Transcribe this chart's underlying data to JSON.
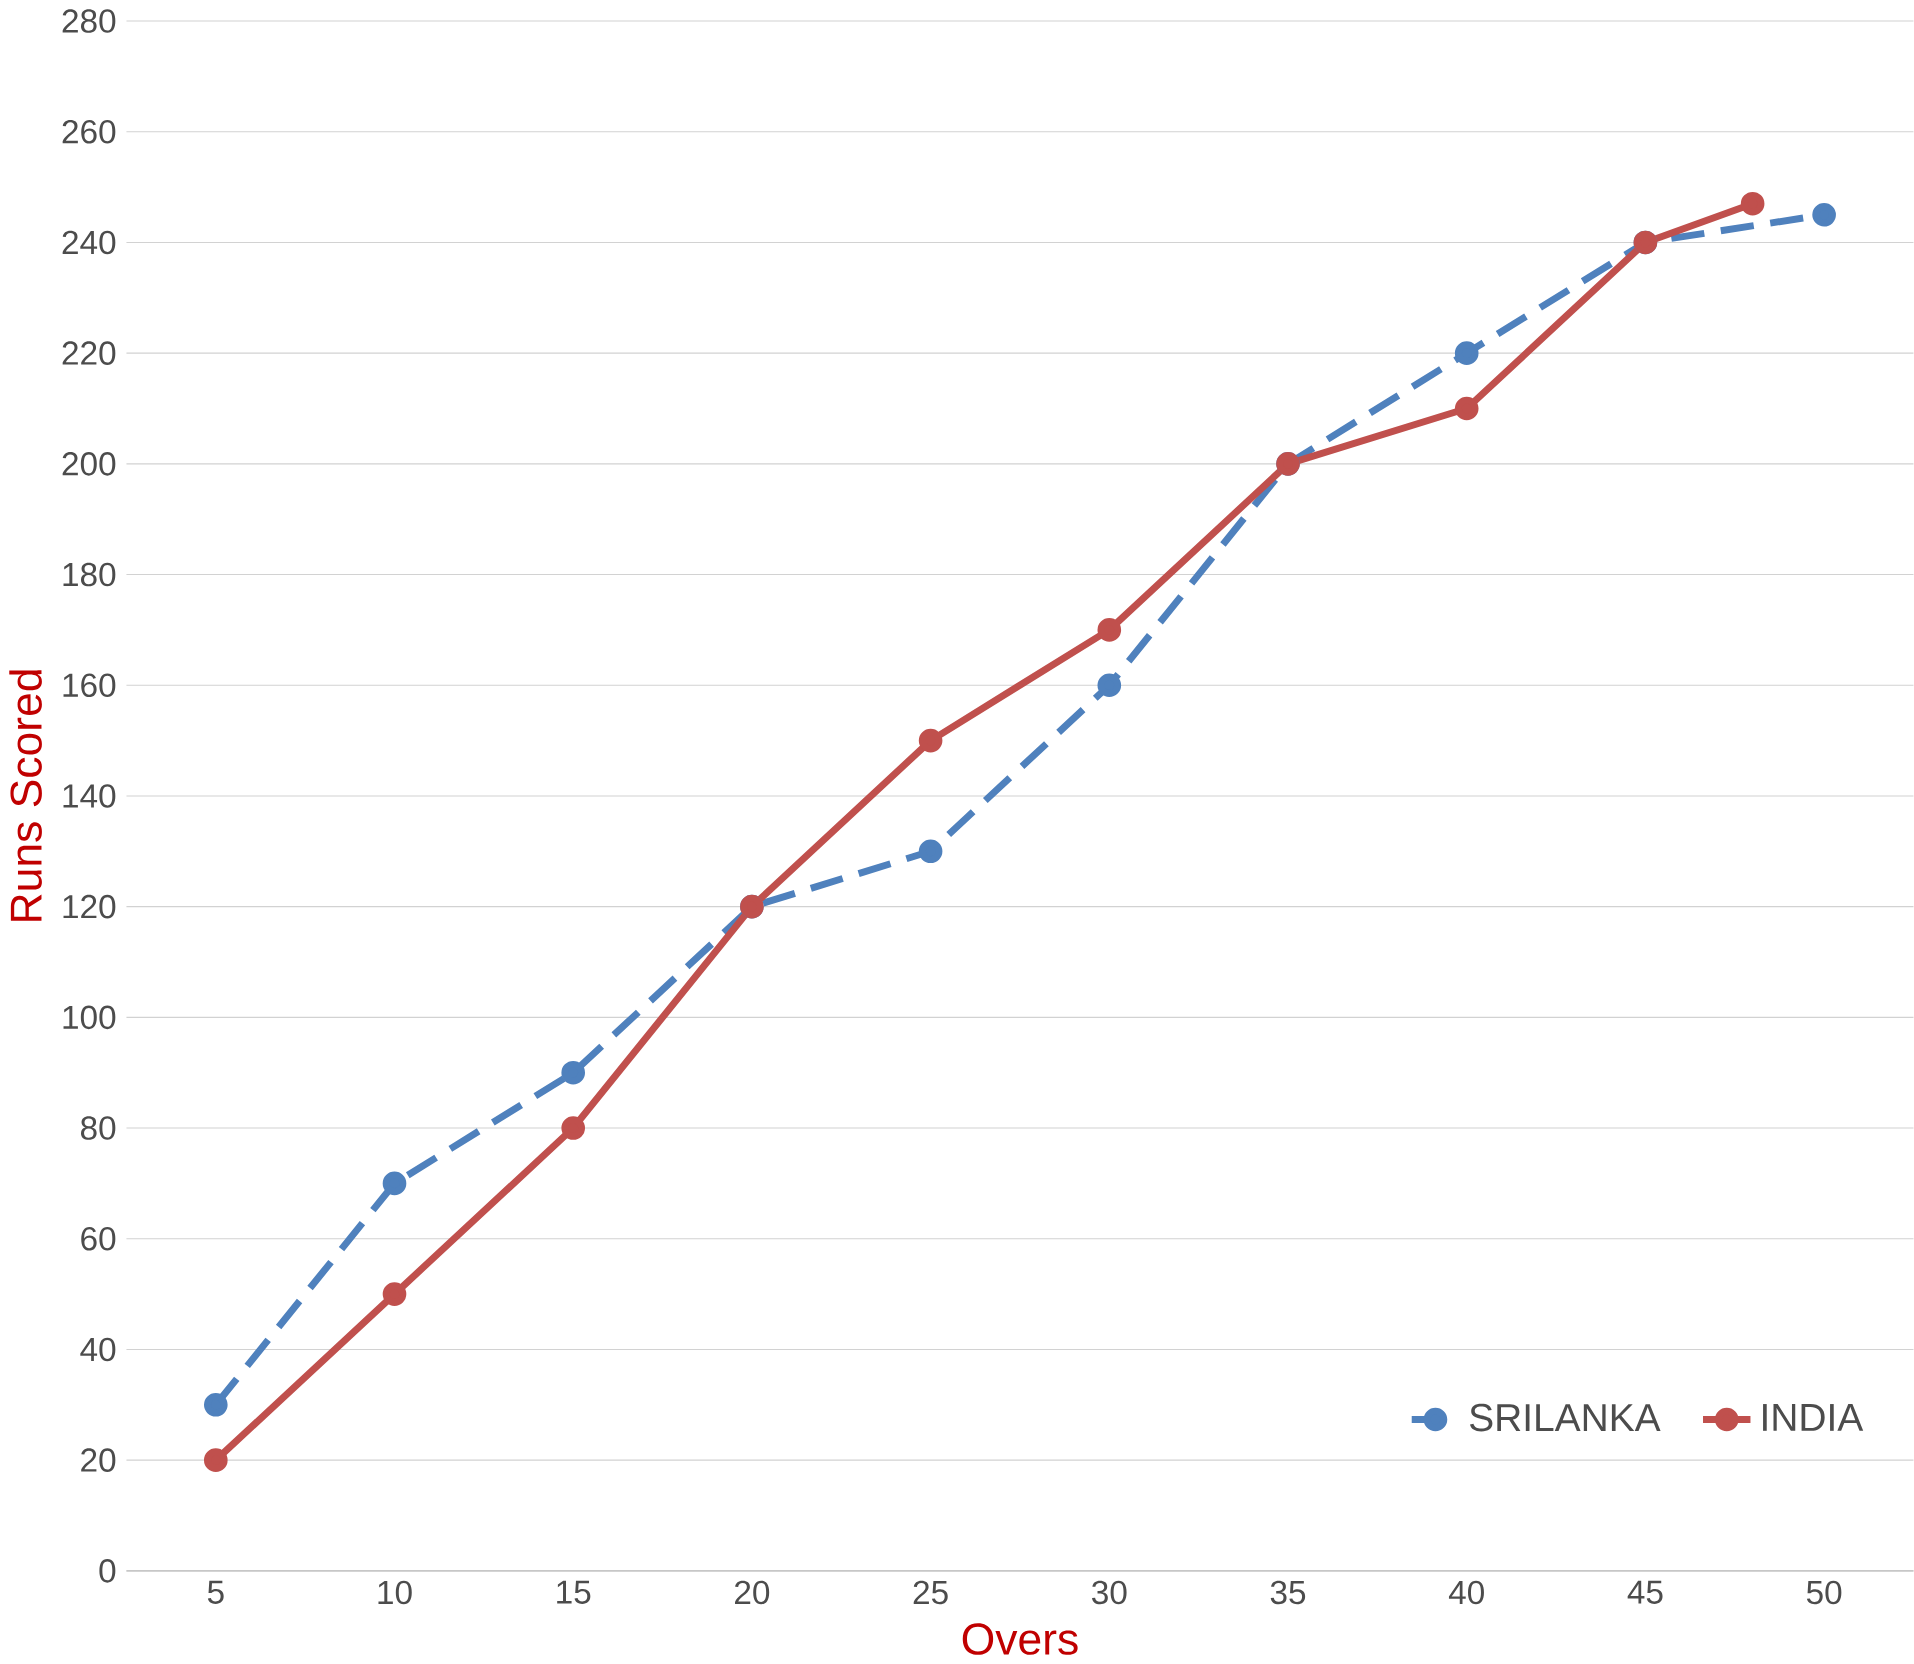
{
  "chart_data": {
    "type": "line",
    "xlabel": "Overs",
    "ylabel": "Runs Scored",
    "xlim": [
      2.5,
      52.5
    ],
    "xticks": [
      5,
      10,
      15,
      20,
      25,
      30,
      35,
      40,
      45,
      50
    ],
    "ylim": [
      0,
      280
    ],
    "yticks": [
      0,
      20,
      40,
      60,
      80,
      100,
      120,
      140,
      160,
      180,
      200,
      220,
      240,
      260,
      280
    ],
    "grid": "y",
    "legend": "bottom right",
    "marker": "circle",
    "series": [
      {
        "name": "SRILANKA",
        "color": "#4f81bd",
        "line_style": "dashed",
        "x": [
          5,
          10,
          15,
          20,
          25,
          30,
          35,
          40,
          45,
          50
        ],
        "values": [
          30,
          70,
          90,
          120,
          130,
          160,
          200,
          220,
          240,
          245
        ]
      },
      {
        "name": "INDIA",
        "color": "#c0504d",
        "line_style": "solid",
        "x": [
          5,
          10,
          15,
          20,
          25,
          30,
          35,
          40,
          45,
          48
        ],
        "values": [
          20,
          50,
          80,
          120,
          150,
          170,
          200,
          210,
          240,
          247
        ]
      }
    ]
  }
}
